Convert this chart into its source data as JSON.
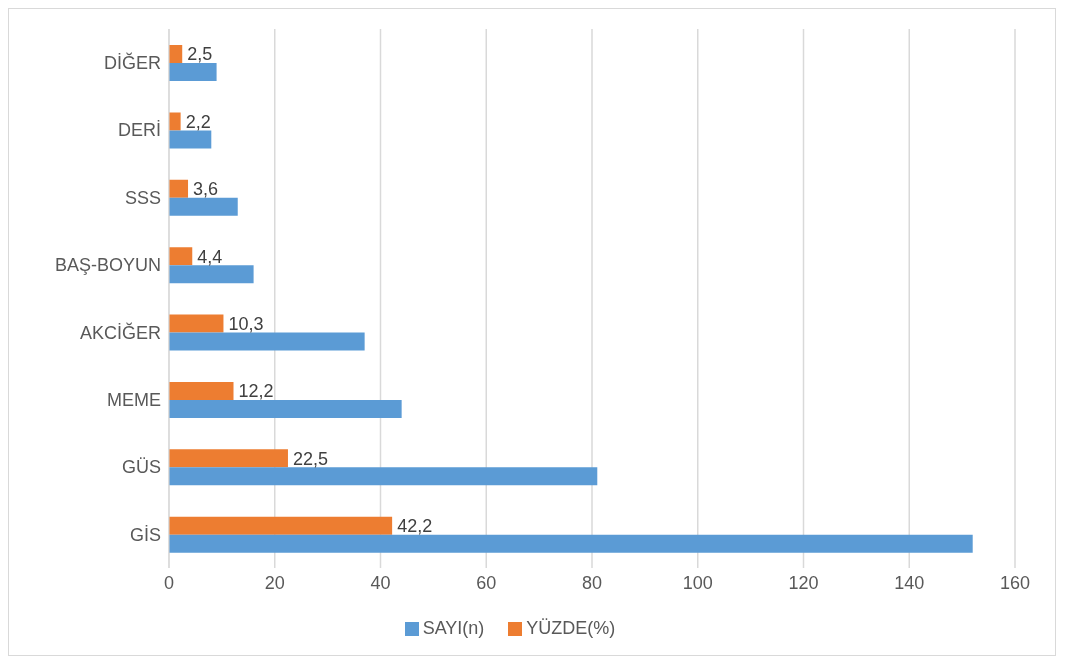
{
  "chart_data": {
    "type": "bar",
    "orientation": "horizontal",
    "categories": [
      "DİĞER",
      "DERİ",
      "SSS",
      "BAŞ-BOYUN",
      "AKCİĞER",
      "MEME",
      "GÜS",
      "GİS"
    ],
    "series": [
      {
        "name": "YÜZDE(%)",
        "color": "#ed7d31",
        "values": [
          2.5,
          2.2,
          3.6,
          4.4,
          10.3,
          12.2,
          22.5,
          42.2
        ],
        "value_labels": [
          "2,5",
          "2,2",
          "3,6",
          "4,4",
          "10,3",
          "12,2",
          "22,5",
          "42,2"
        ]
      },
      {
        "name": "SAYI(n)",
        "color": "#5b9bd5",
        "values": [
          9,
          8,
          13,
          16,
          37,
          44,
          81,
          152
        ]
      }
    ],
    "xlim": [
      0,
      160
    ],
    "xticks": [
      0,
      20,
      40,
      60,
      80,
      100,
      120,
      140,
      160
    ],
    "grid": "x",
    "legend": "bottom"
  }
}
